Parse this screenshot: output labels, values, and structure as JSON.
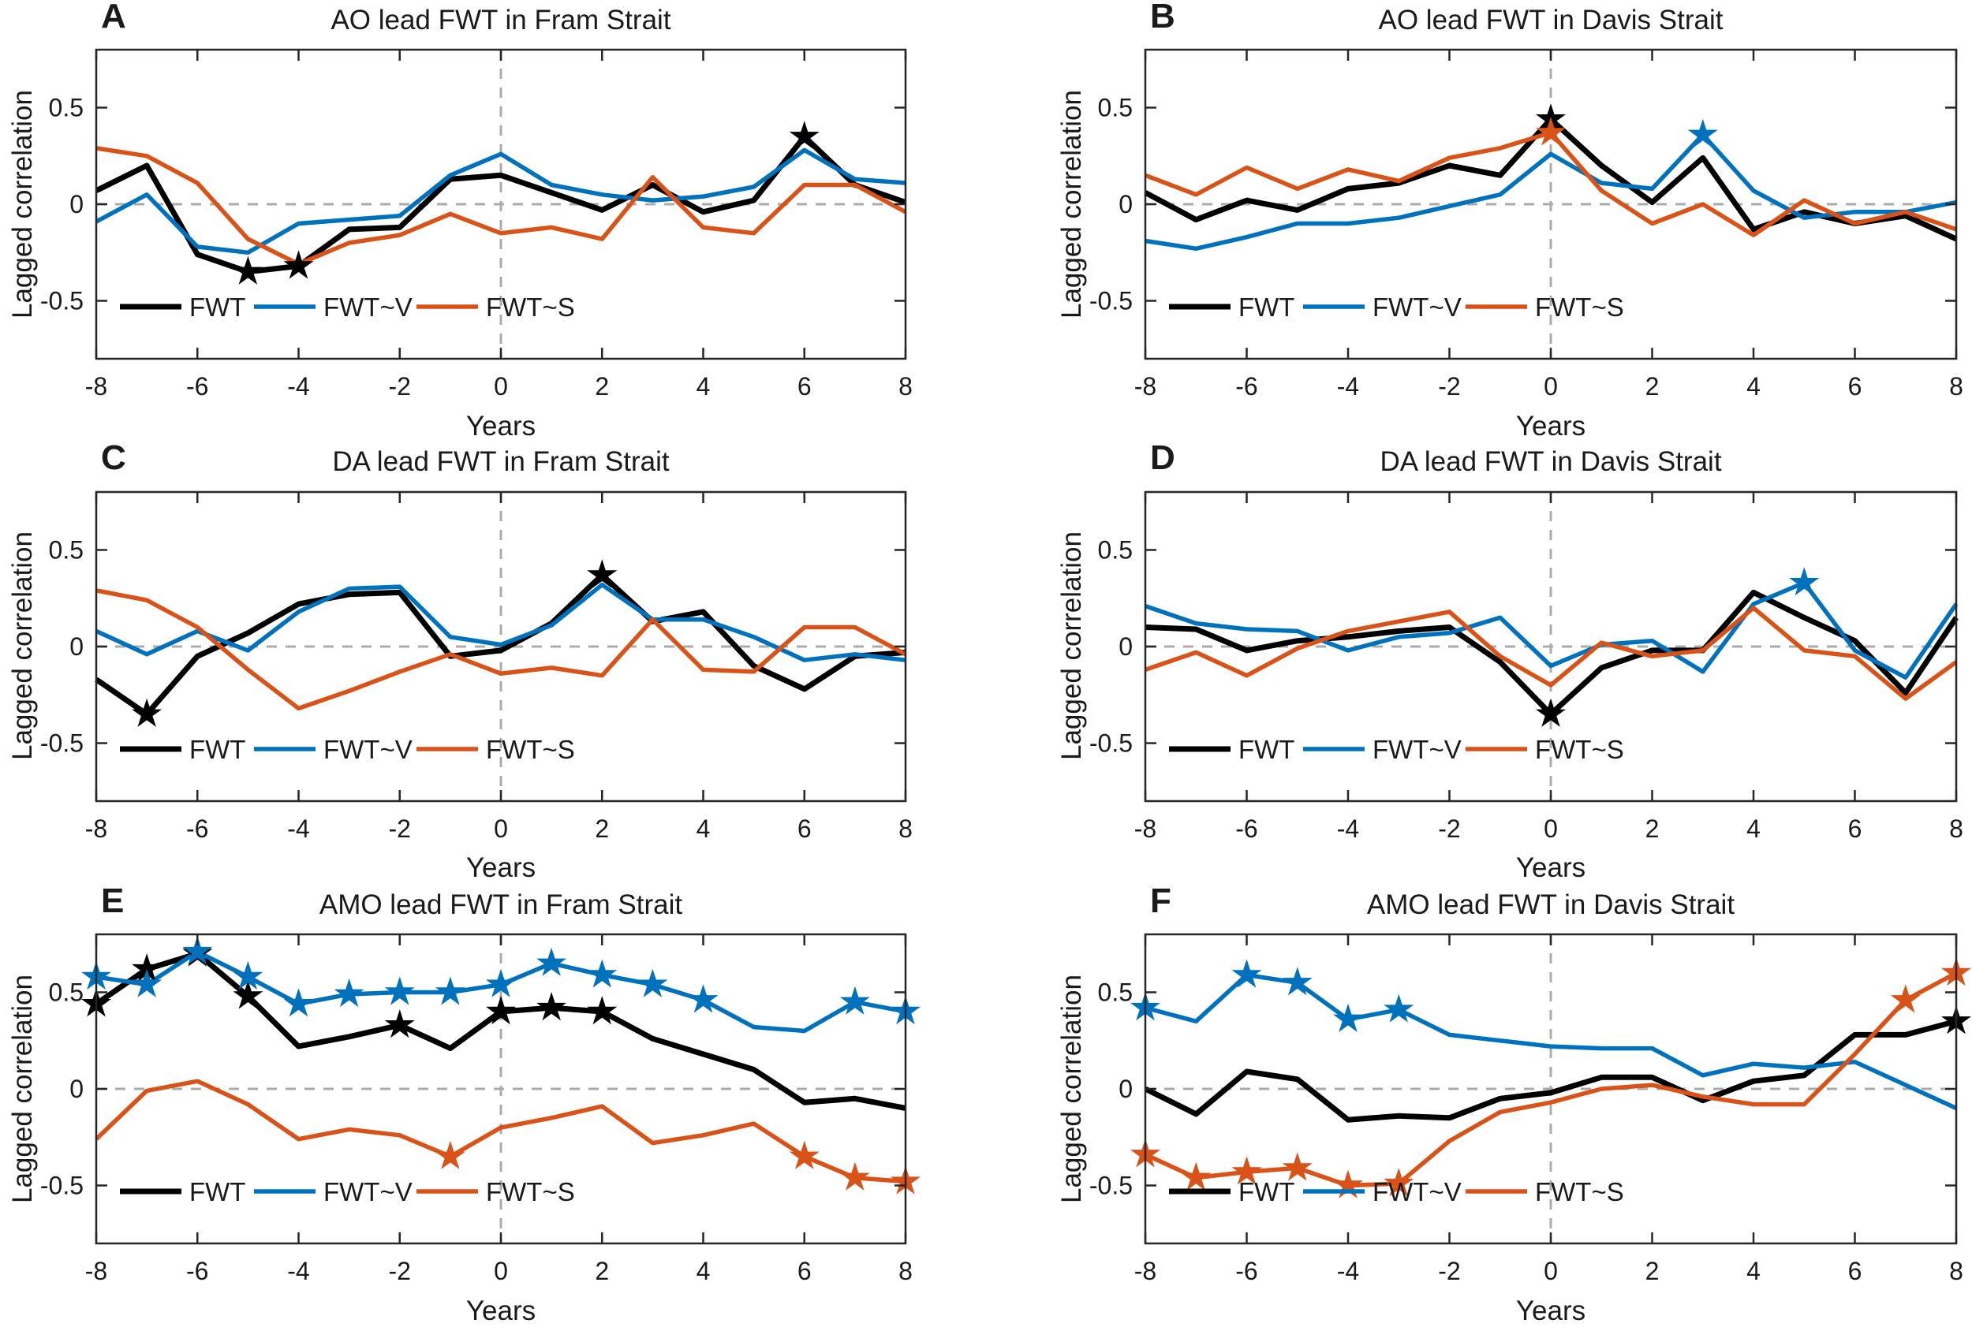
{
  "figure": {
    "description": "Six-panel lagged correlation figure: AO/DA/AMO indices leading freshwater transport (FWT) in Fram Strait and Davis Strait",
    "marker_meaning": "star marker = significant correlation"
  },
  "colors": {
    "fwt": "#000000",
    "fwt_v": "#0072BD",
    "fwt_s": "#D95319",
    "zero_line": "#ABABAB",
    "axes": "#262626"
  },
  "chart_data": [
    {
      "type": "line",
      "panel_label": "A",
      "title": "AO lead FWT in Fram Strait",
      "xlabel": "Years",
      "ylabel": "Lagged correlation",
      "x": [
        -8,
        -7,
        -6,
        -5,
        -4,
        -3,
        -2,
        -1,
        0,
        1,
        2,
        3,
        4,
        5,
        6,
        7,
        8
      ],
      "xlim": [
        -8,
        8
      ],
      "ylim": [
        -0.8,
        0.8
      ],
      "xticks": [
        -8,
        -6,
        -4,
        -2,
        0,
        2,
        4,
        6,
        8
      ],
      "xtick_labels": [
        "-8",
        "-6",
        "-4",
        "-2",
        "0",
        "2",
        "4",
        "6",
        "8"
      ],
      "yticks": [
        -0.5,
        0,
        0.5
      ],
      "ytick_labels": [
        "-0.5",
        "0",
        "0.5"
      ],
      "zero_lines": "dashed gray at x=0 and y=0",
      "legend_position": "bottom-left inside axes",
      "series": [
        {
          "name": "FWT",
          "color": "#000000",
          "values": [
            0.07,
            0.2,
            -0.26,
            -0.35,
            -0.32,
            -0.13,
            -0.12,
            0.13,
            0.15,
            0.06,
            -0.03,
            0.1,
            -0.04,
            0.02,
            0.35,
            0.1,
            0.01
          ],
          "significant_years": [
            -5,
            -4,
            6
          ]
        },
        {
          "name": "FWT~V",
          "color": "#0072BD",
          "values": [
            -0.09,
            0.05,
            -0.22,
            -0.25,
            -0.1,
            -0.08,
            -0.06,
            0.15,
            0.26,
            0.1,
            0.05,
            0.02,
            0.04,
            0.09,
            0.28,
            0.13,
            0.11
          ],
          "significant_years": []
        },
        {
          "name": "FWT~S",
          "color": "#D95319",
          "values": [
            0.29,
            0.25,
            0.11,
            -0.18,
            -0.31,
            -0.2,
            -0.16,
            -0.05,
            -0.15,
            -0.12,
            -0.18,
            0.14,
            -0.12,
            -0.15,
            0.1,
            0.1,
            -0.04
          ],
          "significant_years": []
        }
      ]
    },
    {
      "type": "line",
      "panel_label": "B",
      "title": "AO lead FWT in Davis Strait",
      "xlabel": "Years",
      "ylabel": "Lagged correlation",
      "x": [
        -8,
        -7,
        -6,
        -5,
        -4,
        -3,
        -2,
        -1,
        0,
        1,
        2,
        3,
        4,
        5,
        6,
        7,
        8
      ],
      "xlim": [
        -8,
        8
      ],
      "ylim": [
        -0.8,
        0.8
      ],
      "xticks": [
        -8,
        -6,
        -4,
        -2,
        0,
        2,
        4,
        6,
        8
      ],
      "xtick_labels": [
        "-8",
        "-6",
        "-4",
        "-2",
        "0",
        "2",
        "4",
        "6",
        "8"
      ],
      "yticks": [
        -0.5,
        0,
        0.5
      ],
      "ytick_labels": [
        "-0.5",
        "0",
        "0.5"
      ],
      "zero_lines": "dashed gray at x=0 and y=0",
      "legend_position": "bottom-left inside axes",
      "series": [
        {
          "name": "FWT",
          "color": "#000000",
          "values": [
            0.06,
            -0.08,
            0.02,
            -0.03,
            0.08,
            0.11,
            0.2,
            0.15,
            0.44,
            0.2,
            0.01,
            0.24,
            -0.13,
            -0.04,
            -0.1,
            -0.06,
            -0.18
          ],
          "significant_years": [
            0
          ]
        },
        {
          "name": "FWT~V",
          "color": "#0072BD",
          "values": [
            -0.19,
            -0.23,
            -0.17,
            -0.1,
            -0.1,
            -0.07,
            -0.01,
            0.05,
            0.26,
            0.11,
            0.08,
            0.36,
            0.07,
            -0.07,
            -0.04,
            -0.04,
            0.01
          ],
          "significant_years": [
            3
          ]
        },
        {
          "name": "FWT~S",
          "color": "#D95319",
          "values": [
            0.15,
            0.05,
            0.19,
            0.08,
            0.18,
            0.12,
            0.24,
            0.29,
            0.37,
            0.07,
            -0.1,
            0.0,
            -0.16,
            0.02,
            -0.1,
            -0.04,
            -0.13
          ],
          "significant_years": [
            0
          ]
        }
      ]
    },
    {
      "type": "line",
      "panel_label": "C",
      "title": "DA lead FWT in Fram Strait",
      "xlabel": "Years",
      "ylabel": "Lagged correlation",
      "x": [
        -8,
        -7,
        -6,
        -5,
        -4,
        -3,
        -2,
        -1,
        0,
        1,
        2,
        3,
        4,
        5,
        6,
        7,
        8
      ],
      "xlim": [
        -8,
        8
      ],
      "ylim": [
        -0.8,
        0.8
      ],
      "xticks": [
        -8,
        -6,
        -4,
        -2,
        0,
        2,
        4,
        6,
        8
      ],
      "xtick_labels": [
        "-8",
        "-6",
        "-4",
        "-2",
        "0",
        "2",
        "4",
        "6",
        "8"
      ],
      "yticks": [
        -0.5,
        0,
        0.5
      ],
      "ytick_labels": [
        "-0.5",
        "0",
        "0.5"
      ],
      "zero_lines": "dashed gray at x=0 and y=0",
      "legend_position": "bottom-left inside axes",
      "series": [
        {
          "name": "FWT",
          "color": "#000000",
          "values": [
            -0.17,
            -0.35,
            -0.05,
            0.07,
            0.22,
            0.27,
            0.28,
            -0.05,
            -0.02,
            0.12,
            0.37,
            0.13,
            0.18,
            -0.1,
            -0.22,
            -0.05,
            -0.03
          ],
          "significant_years": [
            -7,
            2
          ]
        },
        {
          "name": "FWT~V",
          "color": "#0072BD",
          "values": [
            0.08,
            -0.04,
            0.08,
            -0.02,
            0.18,
            0.3,
            0.31,
            0.05,
            0.01,
            0.11,
            0.32,
            0.14,
            0.14,
            0.05,
            -0.07,
            -0.04,
            -0.07
          ],
          "significant_years": []
        },
        {
          "name": "FWT~S",
          "color": "#D95319",
          "values": [
            0.29,
            0.24,
            0.1,
            -0.12,
            -0.32,
            -0.23,
            -0.13,
            -0.04,
            -0.14,
            -0.11,
            -0.15,
            0.14,
            -0.12,
            -0.13,
            0.1,
            0.1,
            -0.04
          ],
          "significant_years": []
        }
      ]
    },
    {
      "type": "line",
      "panel_label": "D",
      "title": "DA lead FWT in Davis Strait",
      "xlabel": "Years",
      "ylabel": "Lagged correlation",
      "x": [
        -8,
        -7,
        -6,
        -5,
        -4,
        -3,
        -2,
        -1,
        0,
        1,
        2,
        3,
        4,
        5,
        6,
        7,
        8
      ],
      "xlim": [
        -8,
        8
      ],
      "ylim": [
        -0.8,
        0.8
      ],
      "xticks": [
        -8,
        -6,
        -4,
        -2,
        0,
        2,
        4,
        6,
        8
      ],
      "xtick_labels": [
        "-8",
        "-6",
        "-4",
        "-2",
        "0",
        "2",
        "4",
        "6",
        "8"
      ],
      "yticks": [
        -0.5,
        0,
        0.5
      ],
      "ytick_labels": [
        "-0.5",
        "0",
        "0.5"
      ],
      "zero_lines": "dashed gray at x=0 and y=0",
      "legend_position": "bottom-left inside axes",
      "series": [
        {
          "name": "FWT",
          "color": "#000000",
          "values": [
            0.1,
            0.09,
            -0.02,
            0.03,
            0.05,
            0.08,
            0.1,
            -0.08,
            -0.35,
            -0.11,
            -0.02,
            -0.02,
            0.28,
            0.15,
            0.03,
            -0.24,
            0.15
          ],
          "significant_years": [
            0
          ]
        },
        {
          "name": "FWT~V",
          "color": "#0072BD",
          "values": [
            0.21,
            0.12,
            0.09,
            0.08,
            -0.02,
            0.05,
            0.07,
            0.15,
            -0.1,
            0.01,
            0.03,
            -0.13,
            0.22,
            0.33,
            -0.02,
            -0.16,
            0.22
          ],
          "significant_years": [
            5
          ]
        },
        {
          "name": "FWT~S",
          "color": "#D95319",
          "values": [
            -0.12,
            -0.03,
            -0.15,
            -0.01,
            0.08,
            0.13,
            0.18,
            -0.05,
            -0.2,
            0.02,
            -0.05,
            -0.02,
            0.2,
            -0.02,
            -0.05,
            -0.27,
            -0.08
          ],
          "significant_years": []
        }
      ]
    },
    {
      "type": "line",
      "panel_label": "E",
      "title": "AMO lead FWT in Fram Strait",
      "xlabel": "Years",
      "ylabel": "Lagged correlation",
      "x": [
        -8,
        -7,
        -6,
        -5,
        -4,
        -3,
        -2,
        -1,
        0,
        1,
        2,
        3,
        4,
        5,
        6,
        7,
        8
      ],
      "xlim": [
        -8,
        8
      ],
      "ylim": [
        -0.8,
        0.8
      ],
      "xticks": [
        -8,
        -6,
        -4,
        -2,
        0,
        2,
        4,
        6,
        8
      ],
      "xtick_labels": [
        "-8",
        "-6",
        "-4",
        "-2",
        "0",
        "2",
        "4",
        "6",
        "8"
      ],
      "yticks": [
        -0.5,
        0,
        0.5
      ],
      "ytick_labels": [
        "-0.5",
        "0",
        "0.5"
      ],
      "zero_lines": "dashed gray at x=0 and y=0",
      "legend_position": "bottom-left inside axes",
      "series": [
        {
          "name": "FWT",
          "color": "#000000",
          "values": [
            0.44,
            0.62,
            0.7,
            0.48,
            0.22,
            0.27,
            0.33,
            0.21,
            0.4,
            0.42,
            0.4,
            0.26,
            0.18,
            0.1,
            -0.07,
            -0.05,
            -0.1
          ],
          "significant_years": [
            -8,
            -7,
            -6,
            -5,
            -2,
            0,
            1,
            2
          ]
        },
        {
          "name": "FWT~V",
          "color": "#0072BD",
          "values": [
            0.58,
            0.54,
            0.71,
            0.58,
            0.44,
            0.49,
            0.5,
            0.5,
            0.54,
            0.65,
            0.59,
            0.54,
            0.46,
            0.32,
            0.3,
            0.45,
            0.4
          ],
          "significant_years": [
            -8,
            -7,
            -6,
            -5,
            -4,
            -3,
            -2,
            -1,
            0,
            1,
            2,
            3,
            4,
            7,
            8
          ]
        },
        {
          "name": "FWT~S",
          "color": "#D95319",
          "values": [
            -0.26,
            -0.01,
            0.04,
            -0.08,
            -0.26,
            -0.21,
            -0.24,
            -0.35,
            -0.2,
            -0.15,
            -0.09,
            -0.28,
            -0.24,
            -0.18,
            -0.35,
            -0.46,
            -0.48
          ],
          "significant_years": [
            -1,
            6,
            7,
            8
          ]
        }
      ]
    },
    {
      "type": "line",
      "panel_label": "F",
      "title": "AMO lead FWT in Davis Strait",
      "xlabel": "Years",
      "ylabel": "Lagged correlation",
      "x": [
        -8,
        -7,
        -6,
        -5,
        -4,
        -3,
        -2,
        -1,
        0,
        1,
        2,
        3,
        4,
        5,
        6,
        7,
        8
      ],
      "xlim": [
        -8,
        8
      ],
      "ylim": [
        -0.8,
        0.8
      ],
      "xticks": [
        -8,
        -6,
        -4,
        -2,
        0,
        2,
        4,
        6,
        8
      ],
      "xtick_labels": [
        "-8",
        "-6",
        "-4",
        "-2",
        "0",
        "2",
        "4",
        "6",
        "8"
      ],
      "yticks": [
        -0.5,
        0,
        0.5
      ],
      "ytick_labels": [
        "-0.5",
        "0",
        "0.5"
      ],
      "zero_lines": "dashed gray at x=0 and y=0",
      "legend_position": "bottom-left inside axes",
      "series": [
        {
          "name": "FWT",
          "color": "#000000",
          "values": [
            0.0,
            -0.13,
            0.09,
            0.05,
            -0.16,
            -0.14,
            -0.15,
            -0.05,
            -0.02,
            0.06,
            0.06,
            -0.06,
            0.04,
            0.07,
            0.28,
            0.28,
            0.35
          ],
          "significant_years": [
            8
          ]
        },
        {
          "name": "FWT~V",
          "color": "#0072BD",
          "values": [
            0.42,
            0.35,
            0.59,
            0.55,
            0.36,
            0.41,
            0.28,
            0.25,
            0.22,
            0.21,
            0.21,
            0.07,
            0.13,
            0.11,
            0.14,
            0.02,
            -0.1
          ],
          "significant_years": [
            -8,
            -6,
            -5,
            -4,
            -3
          ]
        },
        {
          "name": "FWT~S",
          "color": "#D95319",
          "values": [
            -0.34,
            -0.46,
            -0.43,
            -0.41,
            -0.5,
            -0.49,
            -0.27,
            -0.12,
            -0.07,
            0.0,
            0.02,
            -0.04,
            -0.08,
            -0.08,
            0.18,
            0.46,
            0.6
          ],
          "significant_years": [
            -8,
            -7,
            -6,
            -5,
            -4,
            -3,
            7,
            8
          ]
        }
      ]
    }
  ]
}
